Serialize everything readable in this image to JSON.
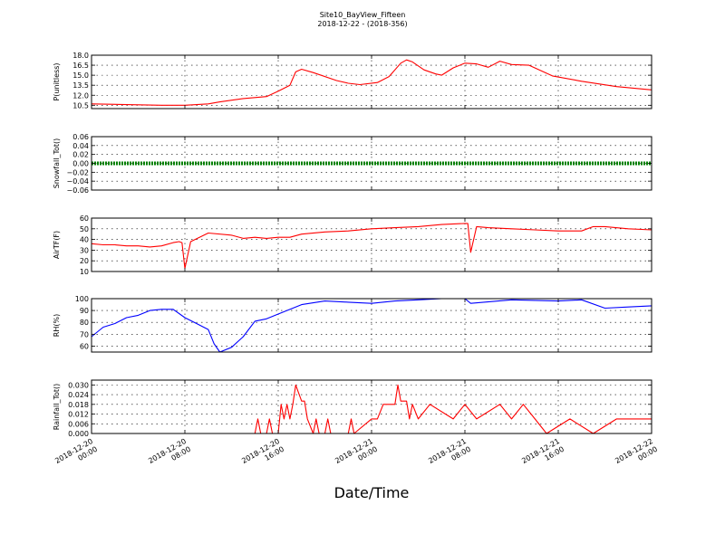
{
  "chart_data": {
    "type": "line",
    "title": "Site10_BayView_Fifteen",
    "subtitle": "2018-12-22 - (2018-356)",
    "xlabel": "Date/Time",
    "x_range": [
      "2018-12-20 00:00",
      "2018-12-22 00:00"
    ],
    "x_ticks": [
      "2018-12-20 00:00",
      "2018-12-20 08:00",
      "2018-12-20 16:00",
      "2018-12-21 00:00",
      "2018-12-21 08:00",
      "2018-12-21 16:00",
      "2018-12-22 00:00"
    ],
    "x_tick_labels": [
      [
        "2018-12-20",
        "00:00"
      ],
      [
        "2018-12-20",
        "08:00"
      ],
      [
        "2018-12-20",
        "16:00"
      ],
      [
        "2018-12-21",
        "00:00"
      ],
      [
        "2018-12-21",
        "08:00"
      ],
      [
        "2018-12-21",
        "16:00"
      ],
      [
        "2018-12-22",
        "00:00"
      ]
    ],
    "grid": true,
    "panels": [
      {
        "ylabel": "P(unitless)",
        "color": "#ff0000",
        "ylim": [
          10.0,
          18.0
        ],
        "yticks": [
          10.5,
          12.0,
          13.5,
          15.0,
          16.5,
          18.0
        ],
        "ytick_labels": [
          "10.5",
          "12.0",
          "13.5",
          "15.0",
          "16.5",
          "18.0"
        ],
        "x": [
          "2018-12-20 00:00",
          "2018-12-20 03:00",
          "2018-12-20 06:00",
          "2018-12-20 08:00",
          "2018-12-20 10:00",
          "2018-12-20 11:00",
          "2018-12-20 13:00",
          "2018-12-20 15:00",
          "2018-12-20 16:00",
          "2018-12-20 17:00",
          "2018-12-20 17:30",
          "2018-12-20 18:00",
          "2018-12-20 19:00",
          "2018-12-20 21:00",
          "2018-12-20 22:00",
          "2018-12-20 23:00",
          "2018-12-21 00:30",
          "2018-12-21 01:30",
          "2018-12-21 02:30",
          "2018-12-21 03:00",
          "2018-12-21 03:30",
          "2018-12-21 04:30",
          "2018-12-21 05:30",
          "2018-12-21 06:00",
          "2018-12-21 07:00",
          "2018-12-21 08:00",
          "2018-12-21 09:00",
          "2018-12-21 10:00",
          "2018-12-21 11:00",
          "2018-12-21 12:00",
          "2018-12-21 13:30",
          "2018-12-21 15:30",
          "2018-12-21 18:00",
          "2018-12-21 21:00",
          "2018-12-22 00:00"
        ],
        "y": [
          10.7,
          10.6,
          10.5,
          10.5,
          10.7,
          11.0,
          11.5,
          11.8,
          12.6,
          13.5,
          15.5,
          15.9,
          15.4,
          14.2,
          13.8,
          13.6,
          13.9,
          14.8,
          16.8,
          17.3,
          17.0,
          15.8,
          15.2,
          15.0,
          16.1,
          16.8,
          16.7,
          16.2,
          17.1,
          16.6,
          16.5,
          14.9,
          14.1,
          13.3,
          12.8
        ]
      },
      {
        "ylabel": "Snowfall_Tot()",
        "color": "#008000",
        "ylim": [
          -0.06,
          0.06
        ],
        "yticks": [
          -0.06,
          -0.04,
          -0.02,
          0.0,
          0.02,
          0.04,
          0.06
        ],
        "ytick_labels": [
          "−0.06",
          "−0.04",
          "−0.02",
          "0.00",
          "0.02",
          "0.04",
          "0.06"
        ],
        "x": [
          "2018-12-20 00:00",
          "2018-12-22 00:00"
        ],
        "y": [
          0.0,
          0.0
        ],
        "marker": "dot"
      },
      {
        "ylabel": "AirTF(F)",
        "color": "#ff0000",
        "ylim": [
          10,
          60
        ],
        "yticks": [
          10,
          20,
          30,
          40,
          50,
          60
        ],
        "ytick_labels": [
          "10",
          "20",
          "30",
          "40",
          "50",
          "60"
        ],
        "x": [
          "2018-12-20 00:00",
          "2018-12-20 01:00",
          "2018-12-20 02:00",
          "2018-12-20 03:00",
          "2018-12-20 04:00",
          "2018-12-20 05:00",
          "2018-12-20 06:00",
          "2018-12-20 07:00",
          "2018-12-20 07:30",
          "2018-12-20 07:45",
          "2018-12-20 08:00",
          "2018-12-20 08:30",
          "2018-12-20 10:00",
          "2018-12-20 12:00",
          "2018-12-20 13:00",
          "2018-12-20 14:00",
          "2018-12-20 15:00",
          "2018-12-20 16:00",
          "2018-12-20 17:00",
          "2018-12-20 18:00",
          "2018-12-20 20:00",
          "2018-12-20 22:00",
          "2018-12-21 00:00",
          "2018-12-21 02:00",
          "2018-12-21 04:00",
          "2018-12-21 06:00",
          "2018-12-21 08:00",
          "2018-12-21 08:15",
          "2018-12-21 08:30",
          "2018-12-21 09:00",
          "2018-12-21 10:00",
          "2018-12-21 12:00",
          "2018-12-21 14:00",
          "2018-12-21 16:00",
          "2018-12-21 18:00",
          "2018-12-21 19:00",
          "2018-12-21 20:00",
          "2018-12-21 22:00",
          "2018-12-22 00:00"
        ],
        "y": [
          36,
          35,
          35,
          34,
          34,
          33,
          34,
          37,
          38,
          37,
          13,
          38,
          46,
          44,
          41,
          42,
          41,
          42,
          42,
          45,
          47,
          48,
          50,
          51,
          52,
          54,
          55,
          55,
          28,
          52,
          51,
          50,
          49,
          48,
          48,
          52,
          52,
          50,
          49
        ]
      },
      {
        "ylabel": "RH(%)",
        "color": "#0000ff",
        "ylim": [
          55,
          100
        ],
        "yticks": [
          60,
          70,
          80,
          90,
          100
        ],
        "ytick_labels": [
          "60",
          "70",
          "80",
          "90",
          "100"
        ],
        "x": [
          "2018-12-20 00:00",
          "2018-12-20 01:00",
          "2018-12-20 02:00",
          "2018-12-20 03:00",
          "2018-12-20 04:00",
          "2018-12-20 05:00",
          "2018-12-20 06:00",
          "2018-12-20 07:00",
          "2018-12-20 08:00",
          "2018-12-20 09:00",
          "2018-12-20 10:00",
          "2018-12-20 10:30",
          "2018-12-20 11:00",
          "2018-12-20 12:00",
          "2018-12-20 13:00",
          "2018-12-20 14:00",
          "2018-12-20 15:00",
          "2018-12-20 16:00",
          "2018-12-20 18:00",
          "2018-12-20 20:00",
          "2018-12-20 22:00",
          "2018-12-21 00:00",
          "2018-12-21 02:00",
          "2018-12-21 04:00",
          "2018-12-21 06:00",
          "2018-12-21 08:00",
          "2018-12-21 08:30",
          "2018-12-21 12:00",
          "2018-12-21 16:00",
          "2018-12-21 18:00",
          "2018-12-21 20:00",
          "2018-12-21 22:00",
          "2018-12-22 00:00"
        ],
        "y": [
          68,
          76,
          79,
          84,
          86,
          90,
          91,
          91,
          84,
          79,
          74,
          62,
          55,
          59,
          68,
          81,
          83,
          87,
          95,
          98,
          97,
          96,
          98,
          99,
          100,
          100,
          96,
          99,
          98,
          99,
          92,
          93,
          94
        ]
      },
      {
        "ylabel": "Rainfall_Tot()",
        "color": "#ff0000",
        "ylim": [
          0.0,
          0.033
        ],
        "yticks": [
          0.0,
          0.006,
          0.012,
          0.018,
          0.024,
          0.03
        ],
        "ytick_labels": [
          "0.000",
          "0.006",
          "0.012",
          "0.018",
          "0.024",
          "0.030"
        ],
        "x": [
          "2018-12-20 00:00",
          "2018-12-20 14:00",
          "2018-12-20 14:15",
          "2018-12-20 14:30",
          "2018-12-20 15:00",
          "2018-12-20 15:15",
          "2018-12-20 15:30",
          "2018-12-20 16:00",
          "2018-12-20 16:15",
          "2018-12-20 16:30",
          "2018-12-20 16:45",
          "2018-12-20 17:00",
          "2018-12-20 17:15",
          "2018-12-20 17:30",
          "2018-12-20 18:00",
          "2018-12-20 18:15",
          "2018-12-20 18:30",
          "2018-12-20 19:00",
          "2018-12-20 19:15",
          "2018-12-20 19:30",
          "2018-12-20 20:00",
          "2018-12-20 20:15",
          "2018-12-20 20:30",
          "2018-12-20 22:00",
          "2018-12-20 22:15",
          "2018-12-20 22:30",
          "2018-12-21 00:00",
          "2018-12-21 00:30",
          "2018-12-21 01:00",
          "2018-12-21 02:00",
          "2018-12-21 02:15",
          "2018-12-21 02:30",
          "2018-12-21 03:00",
          "2018-12-21 03:15",
          "2018-12-21 03:30",
          "2018-12-21 04:00",
          "2018-12-21 05:00",
          "2018-12-21 07:00",
          "2018-12-21 08:00",
          "2018-12-21 09:00",
          "2018-12-21 11:00",
          "2018-12-21 12:00",
          "2018-12-21 13:00",
          "2018-12-21 14:00",
          "2018-12-21 15:00",
          "2018-12-21 17:00",
          "2018-12-21 19:00",
          "2018-12-21 21:00",
          "2018-12-22 00:00"
        ],
        "y": [
          0.0,
          0.0,
          0.009,
          0.0,
          0.0,
          0.009,
          0.0,
          0.0,
          0.018,
          0.009,
          0.018,
          0.009,
          0.018,
          0.03,
          0.02,
          0.02,
          0.009,
          0.0,
          0.009,
          0.0,
          0.0,
          0.009,
          0.0,
          0.0,
          0.009,
          0.0,
          0.009,
          0.009,
          0.018,
          0.018,
          0.03,
          0.02,
          0.02,
          0.009,
          0.018,
          0.009,
          0.018,
          0.009,
          0.018,
          0.009,
          0.018,
          0.009,
          0.018,
          0.009,
          0.0,
          0.009,
          0.0,
          0.009,
          0.009
        ]
      }
    ]
  }
}
